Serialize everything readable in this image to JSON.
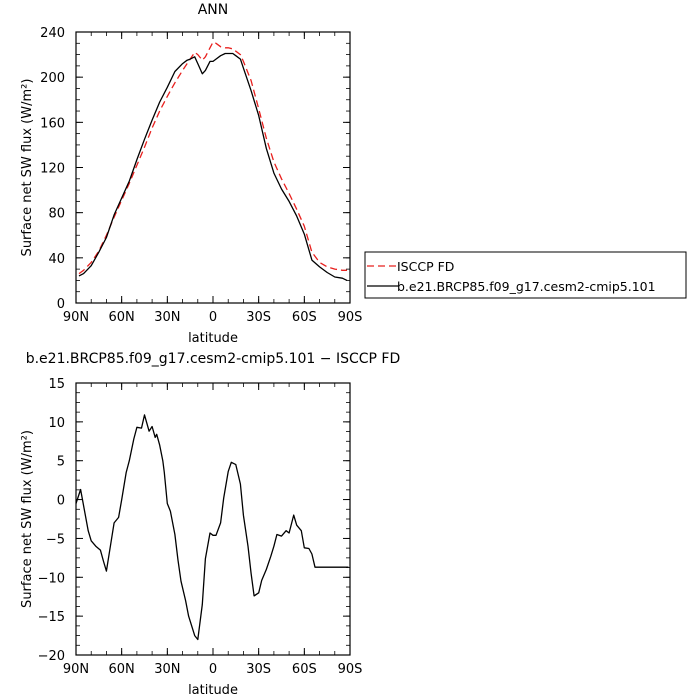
{
  "chart_data": [
    {
      "type": "line",
      "title": "ANN",
      "xlabel": "latitude",
      "ylabel": "Surface net SW flux (W/m²)",
      "xlim": [
        90,
        -90
      ],
      "ylim": [
        0,
        240
      ],
      "x_ticks": [
        90,
        60,
        30,
        0,
        -30,
        -60,
        -90
      ],
      "x_tick_labels": [
        "90N",
        "60N",
        "30N",
        "0",
        "30S",
        "60S",
        "90S"
      ],
      "y_ticks": [
        0,
        40,
        80,
        120,
        160,
        200,
        240
      ],
      "y_tick_labels": [
        "0",
        "40",
        "80",
        "120",
        "160",
        "200",
        "240"
      ],
      "legend": "right",
      "series": [
        {
          "name": "ISCCP FD",
          "color": "#e8201e",
          "dash": true,
          "x": [
            88,
            85,
            80,
            75,
            70,
            65,
            60,
            55,
            50,
            45,
            40,
            35,
            30,
            25,
            20,
            17,
            15,
            12,
            10,
            7,
            5,
            2,
            0,
            -2,
            -5,
            -8,
            -10,
            -13,
            -15,
            -18,
            -20,
            -25,
            -30,
            -35,
            -40,
            -45,
            -50,
            -55,
            -60,
            -65,
            -70,
            -75,
            -80,
            -85,
            -88
          ],
          "y": [
            26,
            29,
            36,
            46,
            60,
            76,
            91,
            106,
            122,
            138,
            155,
            170,
            183,
            195,
            206,
            212,
            216,
            222,
            220,
            215,
            218,
            226,
            231,
            230,
            227,
            226,
            226,
            225,
            223,
            220,
            214,
            197,
            172,
            146,
            125,
            110,
            97,
            83,
            68,
            45,
            36,
            32,
            30,
            29,
            29
          ]
        },
        {
          "name": "b.e21.BRCP85.f09_g17.cesm2-cmip5.101",
          "color": "#000000",
          "dash": false,
          "x": [
            88,
            85,
            80,
            75,
            70,
            65,
            60,
            55,
            50,
            45,
            40,
            35,
            30,
            25,
            20,
            17,
            15,
            12,
            10,
            7,
            5,
            2,
            0,
            -2,
            -5,
            -8,
            -10,
            -13,
            -15,
            -18,
            -20,
            -25,
            -30,
            -35,
            -40,
            -45,
            -50,
            -55,
            -60,
            -65,
            -70,
            -75,
            -80,
            -85,
            -88
          ],
          "y": [
            24,
            26,
            33,
            45,
            58,
            78,
            93,
            108,
            127,
            145,
            162,
            178,
            191,
            205,
            212,
            215,
            216,
            218,
            212,
            203,
            206,
            214,
            214,
            216,
            219,
            221,
            221,
            221,
            219,
            216,
            208,
            188,
            166,
            137,
            115,
            101,
            90,
            77,
            61,
            38,
            32,
            27,
            23,
            22,
            20
          ]
        }
      ]
    },
    {
      "type": "line",
      "title": "b.e21.BRCP85.f09_g17.cesm2-cmip5.101 − ISCCP FD",
      "xlabel": "latitude",
      "ylabel": "Surface net SW flux (W/m²)",
      "xlim": [
        90,
        -90
      ],
      "ylim": [
        -20,
        15
      ],
      "x_ticks": [
        90,
        60,
        30,
        0,
        -30,
        -60,
        -90
      ],
      "x_tick_labels": [
        "90N",
        "60N",
        "30N",
        "0",
        "30S",
        "60S",
        "90S"
      ],
      "y_ticks": [
        -20,
        -15,
        -10,
        -5,
        0,
        5,
        10,
        15
      ],
      "y_tick_labels": [
        "−20",
        "−15",
        "−10",
        "−5",
        "0",
        "5",
        "10",
        "15"
      ],
      "series": [
        {
          "color": "#000000",
          "x": [
            90,
            87,
            85,
            82,
            80,
            77,
            74,
            72,
            70,
            67,
            65,
            62,
            60,
            57,
            55,
            52,
            50,
            47,
            45,
            42,
            40,
            38,
            37,
            35,
            33,
            32,
            30,
            28,
            25,
            23,
            21,
            18,
            16,
            12,
            10,
            7,
            5,
            2,
            0,
            -2,
            -5,
            -7,
            -10,
            -12,
            -15,
            -18,
            -20,
            -23,
            -25,
            -27,
            -30,
            -32,
            -35,
            -38,
            -40,
            -42,
            -45,
            -48,
            -50,
            -53,
            -55,
            -58,
            -60,
            -63,
            -65,
            -67,
            -70,
            -73,
            -75,
            -78,
            -80,
            -82,
            -85,
            -87,
            -89
          ],
          "y": [
            -0.5,
            1.3,
            -0.8,
            -4.0,
            -5.3,
            -6.0,
            -6.5,
            -7.9,
            -9.2,
            -5.5,
            -3.0,
            -2.3,
            0.0,
            3.5,
            5.0,
            7.8,
            9.3,
            9.2,
            10.9,
            8.8,
            9.4,
            8.0,
            8.4,
            7.0,
            5.0,
            3.5,
            -0.5,
            -1.5,
            -4.5,
            -7.8,
            -10.5,
            -13.0,
            -15.0,
            -17.5,
            -18.0,
            -13.5,
            -7.6,
            -4.3,
            -4.6,
            -4.6,
            -3.0,
            0.2,
            3.6,
            4.8,
            4.5,
            2.0,
            -2.0,
            -6.0,
            -9.5,
            -12.4,
            -12.0,
            -10.4,
            -9.0,
            -7.3,
            -6.0,
            -4.5,
            -4.7,
            -4.0,
            -4.3,
            -2.0,
            -3.3,
            -4.0,
            -6.2,
            -6.3,
            -7.0,
            -8.7,
            -8.7,
            -8.7,
            -8.7,
            -8.7,
            -8.7,
            -8.7,
            -8.7,
            -8.7,
            -8.7
          ]
        }
      ]
    }
  ]
}
